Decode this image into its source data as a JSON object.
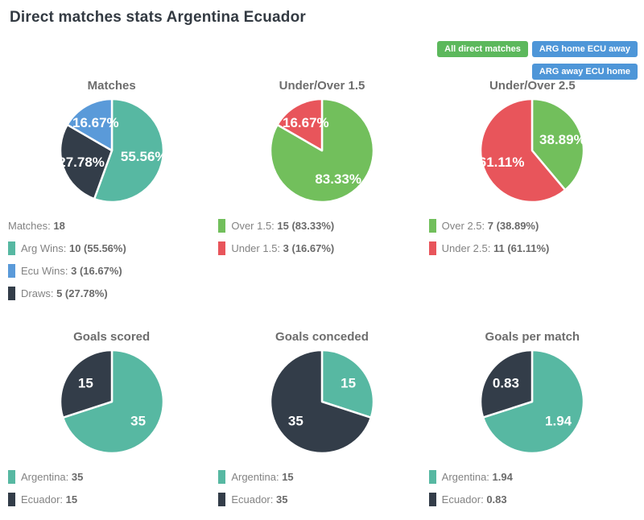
{
  "page": {
    "title": "Direct matches stats Argentina Ecuador"
  },
  "filters": {
    "all": {
      "label": "All direct matches",
      "color": "#5cb85c"
    },
    "home": {
      "label": "ARG home ECU away",
      "color": "#4e96d8"
    },
    "away": {
      "label": "ARG away ECU home",
      "color": "#4e96d8"
    }
  },
  "colors": {
    "teal": "#57b8a2",
    "dark": "#333d49",
    "blue": "#5a9ad9",
    "green": "#72bf5c",
    "red": "#e8555b",
    "label_text": "#ffffff"
  },
  "chart_data": [
    {
      "type": "pie",
      "title": "Matches",
      "total_label": "Matches:",
      "total_value": "18",
      "slices": [
        {
          "label": "Arg Wins",
          "value": 10,
          "pct": 55.56,
          "display": "55.56%",
          "color": "#57b8a2"
        },
        {
          "label": "Draws",
          "value": 5,
          "pct": 27.78,
          "display": "27.78%",
          "color": "#333d49"
        },
        {
          "label": "Ecu Wins",
          "value": 3,
          "pct": 16.67,
          "display": "16.67%",
          "color": "#5a9ad9"
        }
      ],
      "legend": [
        {
          "swatch": null,
          "label": "Matches:",
          "value": "18"
        },
        {
          "swatch": "#57b8a2",
          "label": "Arg Wins:",
          "value": "10 (55.56%)"
        },
        {
          "swatch": "#5a9ad9",
          "label": "Ecu Wins:",
          "value": "3 (16.67%)"
        },
        {
          "swatch": "#333d49",
          "label": "Draws:",
          "value": "5 (27.78%)"
        }
      ]
    },
    {
      "type": "pie",
      "title": "Under/Over 1.5",
      "slices": [
        {
          "label": "Over 1.5",
          "value": 15,
          "pct": 83.33,
          "display": "83.33%",
          "color": "#72bf5c"
        },
        {
          "label": "Under 1.5",
          "value": 3,
          "pct": 16.67,
          "display": "16.67%",
          "color": "#e8555b"
        }
      ],
      "legend": [
        {
          "swatch": "#72bf5c",
          "label": "Over 1.5:",
          "value": "15 (83.33%)"
        },
        {
          "swatch": "#e8555b",
          "label": "Under 1.5:",
          "value": "3 (16.67%)"
        }
      ]
    },
    {
      "type": "pie",
      "title": "Under/Over 2.5",
      "slices": [
        {
          "label": "Over 2.5",
          "value": 7,
          "pct": 38.89,
          "display": "38.89%",
          "color": "#72bf5c"
        },
        {
          "label": "Under 2.5",
          "value": 11,
          "pct": 61.11,
          "display": "61.11%",
          "color": "#e8555b"
        }
      ],
      "legend": [
        {
          "swatch": "#72bf5c",
          "label": "Over 2.5:",
          "value": "7 (38.89%)"
        },
        {
          "swatch": "#e8555b",
          "label": "Under 2.5:",
          "value": "11 (61.11%)"
        }
      ]
    },
    {
      "type": "pie",
      "title": "Goals scored",
      "slices": [
        {
          "label": "Argentina",
          "value": 35,
          "pct": 70,
          "display": "35",
          "color": "#57b8a2"
        },
        {
          "label": "Ecuador",
          "value": 15,
          "pct": 30,
          "display": "15",
          "color": "#333d49"
        }
      ],
      "legend": [
        {
          "swatch": "#57b8a2",
          "label": "Argentina:",
          "value": "35"
        },
        {
          "swatch": "#333d49",
          "label": "Ecuador:",
          "value": "15"
        }
      ]
    },
    {
      "type": "pie",
      "title": "Goals conceded",
      "slices": [
        {
          "label": "Argentina",
          "value": 15,
          "pct": 30,
          "display": "15",
          "color": "#57b8a2"
        },
        {
          "label": "Ecuador",
          "value": 35,
          "pct": 70,
          "display": "35",
          "color": "#333d49"
        }
      ],
      "legend": [
        {
          "swatch": "#57b8a2",
          "label": "Argentina:",
          "value": "15"
        },
        {
          "swatch": "#333d49",
          "label": "Ecuador:",
          "value": "35"
        }
      ]
    },
    {
      "type": "pie",
      "title": "Goals per match",
      "slices": [
        {
          "label": "Argentina",
          "value": 1.94,
          "pct": 70.04,
          "display": "1.94",
          "color": "#57b8a2"
        },
        {
          "label": "Ecuador",
          "value": 0.83,
          "pct": 29.96,
          "display": "0.83",
          "color": "#333d49"
        }
      ],
      "legend": [
        {
          "swatch": "#57b8a2",
          "label": "Argentina:",
          "value": "1.94"
        },
        {
          "swatch": "#333d49",
          "label": "Ecuador:",
          "value": "0.83"
        }
      ]
    }
  ]
}
